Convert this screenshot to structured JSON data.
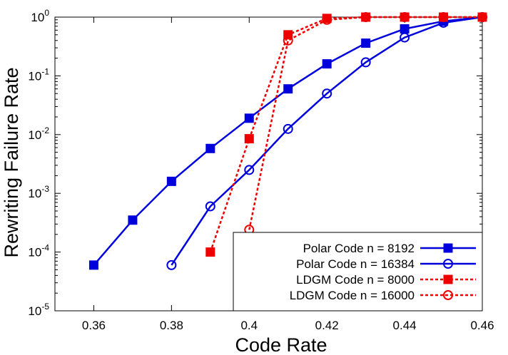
{
  "chart_data": {
    "type": "line",
    "title": "",
    "xlabel": "Code Rate",
    "ylabel": "Rewriting Failure Rate",
    "xlim": [
      0.35,
      0.46
    ],
    "ylim": [
      1e-05,
      1
    ],
    "yscale": "log",
    "grid": false,
    "legend_position": "bottom-right",
    "x_ticks": [
      0.36,
      0.38,
      0.4,
      0.42,
      0.44,
      0.46
    ],
    "x_tick_labels": [
      "0.36",
      "0.38",
      "0.4",
      "0.42",
      "0.44",
      "0.46"
    ],
    "y_ticks": [
      1e-05,
      0.0001,
      0.001,
      0.01,
      0.1,
      1
    ],
    "y_tick_base": "10",
    "y_tick_exponents": [
      "-5",
      "-4",
      "-3",
      "-2",
      "-1",
      "0"
    ],
    "series": [
      {
        "name": "Polar Code n = 8192",
        "color": "#0000dd",
        "line_style": "solid",
        "marker": "filled-square",
        "x": [
          0.36,
          0.37,
          0.38,
          0.39,
          0.4,
          0.41,
          0.42,
          0.43,
          0.44,
          0.45,
          0.46
        ],
        "y": [
          6e-05,
          0.00035,
          0.0016,
          0.0058,
          0.019,
          0.06,
          0.16,
          0.36,
          0.63,
          0.85,
          1.0
        ]
      },
      {
        "name": "Polar Code n = 16384",
        "color": "#0000dd",
        "line_style": "solid",
        "marker": "open-circle",
        "x": [
          0.38,
          0.39,
          0.4,
          0.41,
          0.42,
          0.43,
          0.44,
          0.45,
          0.46
        ],
        "y": [
          6e-05,
          0.0006,
          0.0025,
          0.0125,
          0.05,
          0.17,
          0.45,
          0.8,
          1.0
        ]
      },
      {
        "name": "LDGM Code n = 8000",
        "color": "#ee0000",
        "line_style": "dashed",
        "marker": "filled-square",
        "x": [
          0.39,
          0.4,
          0.41,
          0.42,
          0.43,
          0.44,
          0.45,
          0.46
        ],
        "y": [
          0.0001,
          0.0085,
          0.5,
          0.95,
          1.0,
          1.0,
          1.0,
          1.0
        ]
      },
      {
        "name": "LDGM Code n = 16000",
        "color": "#ee0000",
        "line_style": "dashed",
        "marker": "open-circle",
        "x": [
          0.4,
          0.41,
          0.42,
          0.43,
          0.44,
          0.45,
          0.46
        ],
        "y": [
          0.00024,
          0.4,
          0.9,
          1.0,
          1.0,
          1.0,
          1.0
        ]
      }
    ]
  }
}
